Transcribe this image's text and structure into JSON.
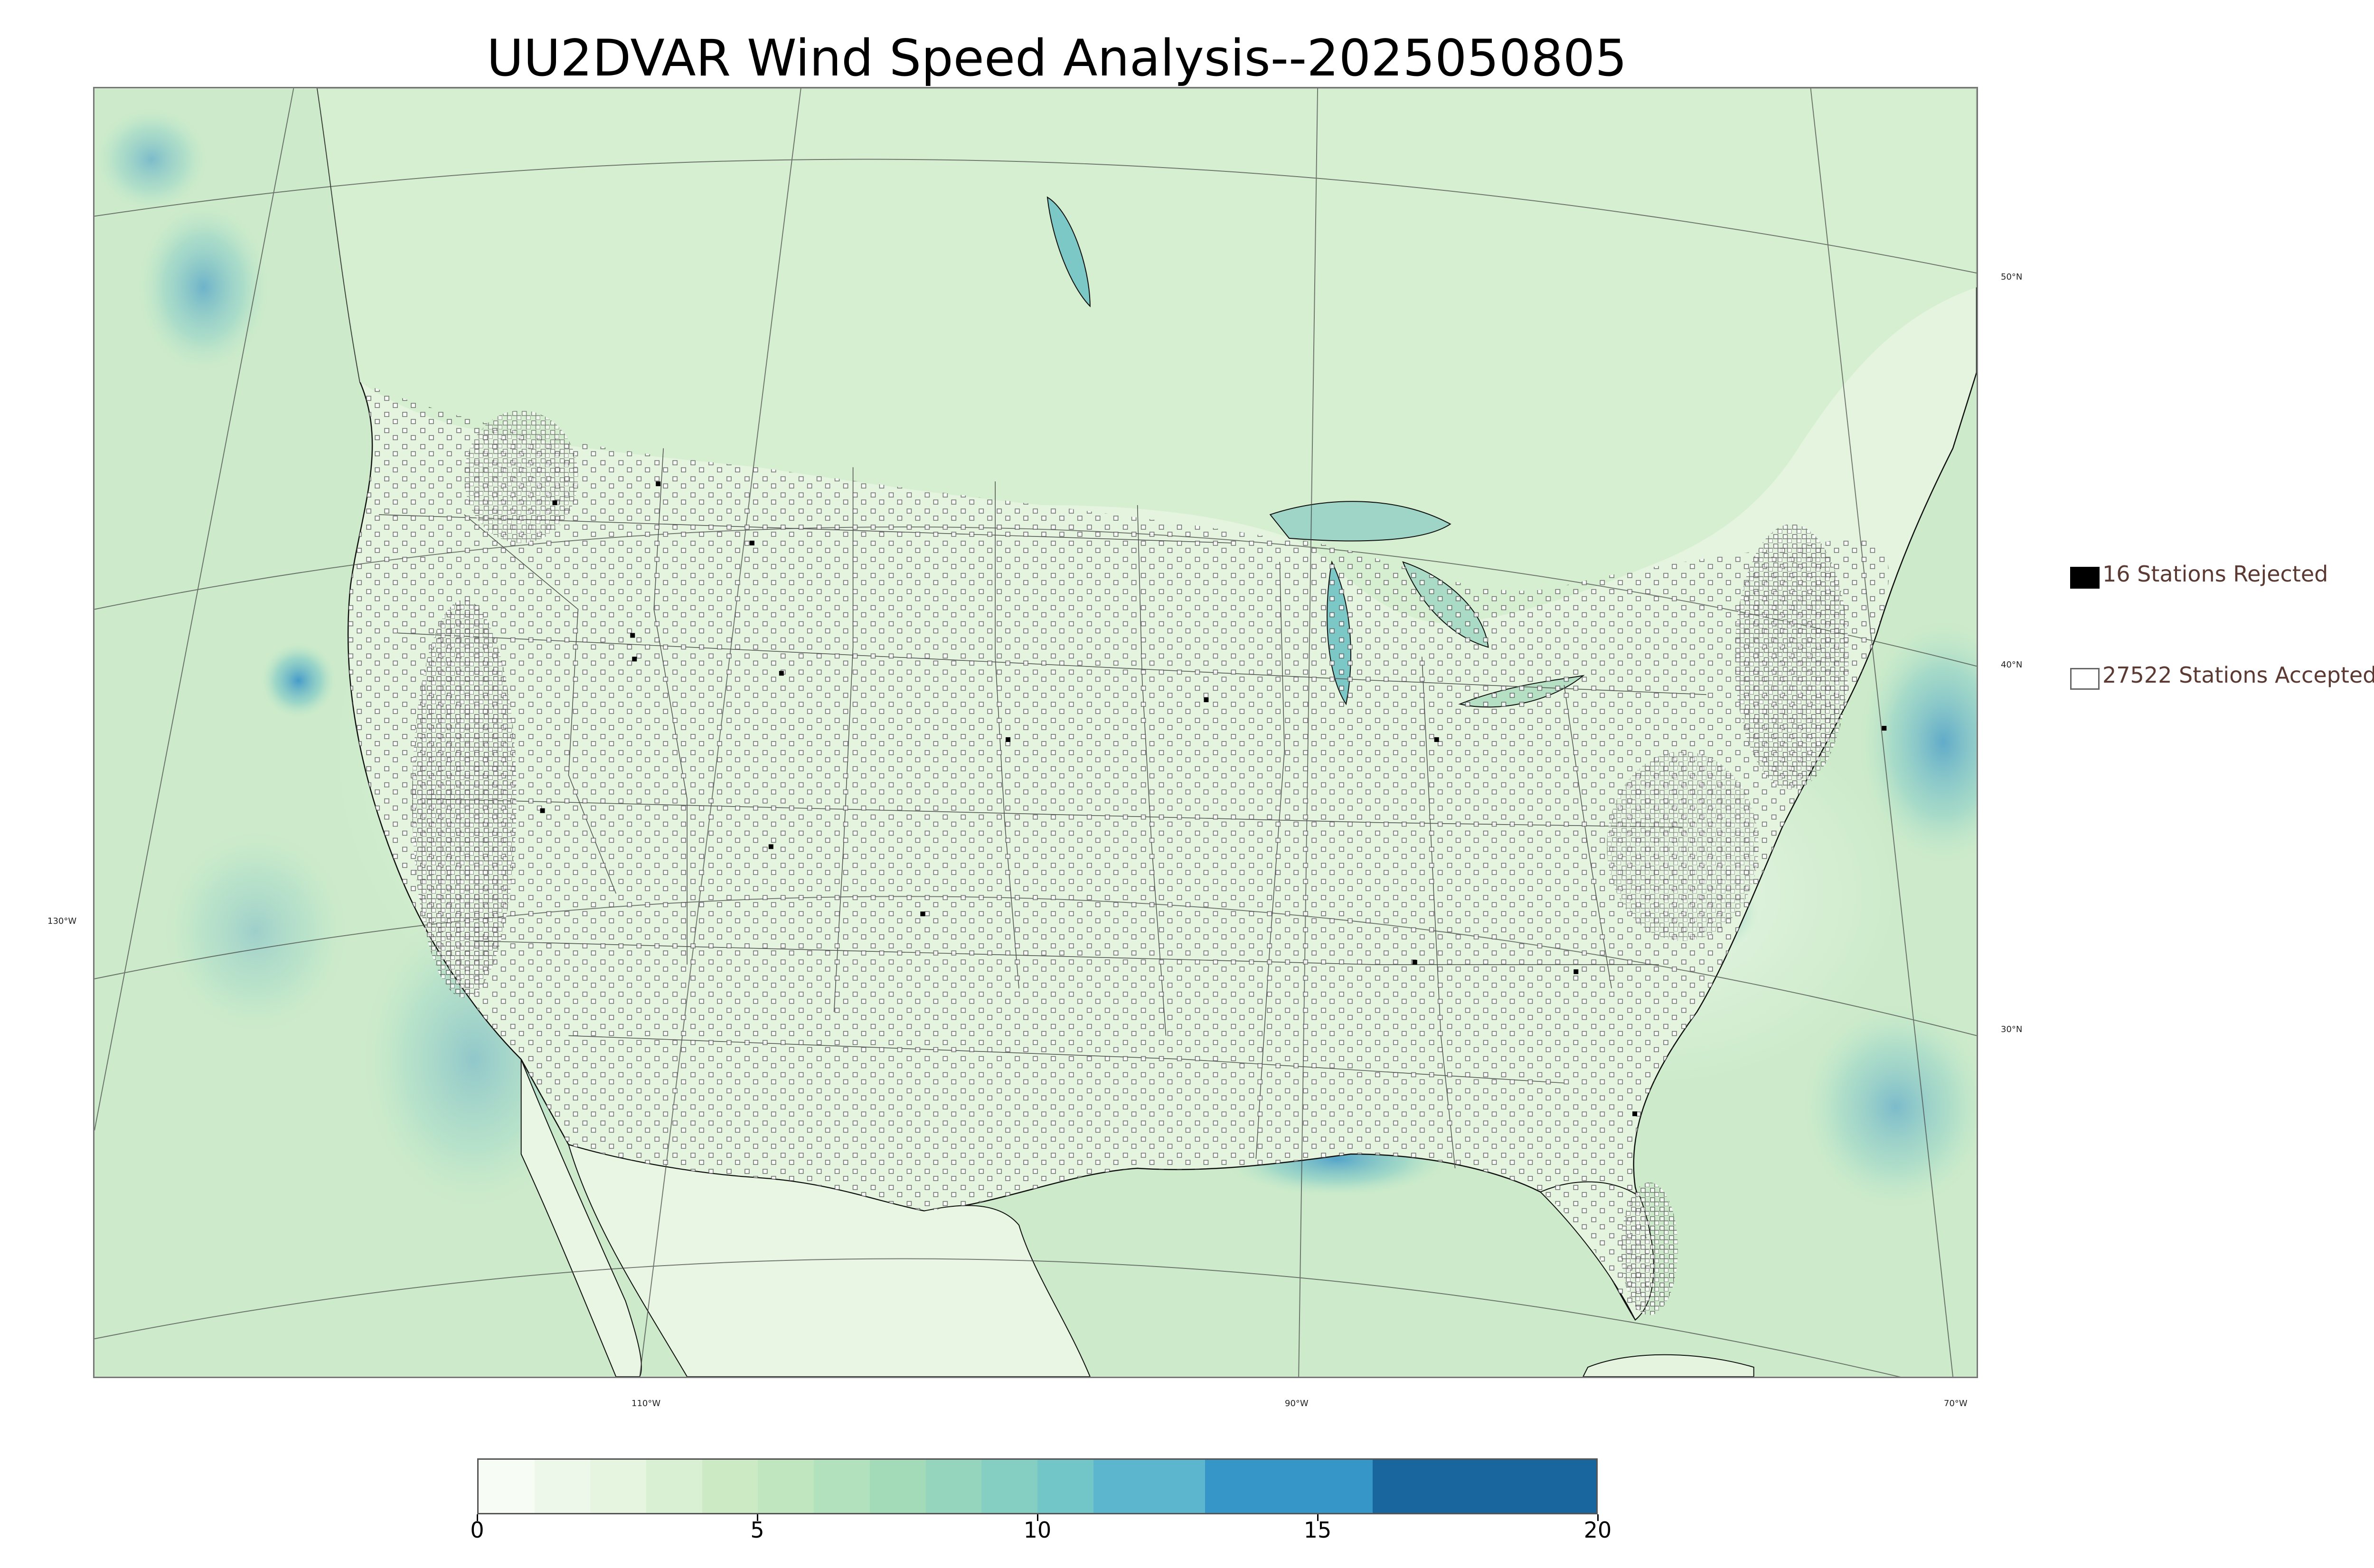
{
  "title": "UU2DVAR Wind Speed Analysis--2025050805",
  "graticule": {
    "lat_labels": [
      "50°N",
      "40°N",
      "30°N"
    ],
    "lon_labels": [
      "130°W",
      "110°W",
      "90°W",
      "70°W"
    ]
  },
  "legend": {
    "rejected": {
      "count": 16,
      "label": "16 Stations Rejected",
      "color": "#000000"
    },
    "accepted": {
      "count": 27522,
      "label": "27522 Stations Accepted",
      "color": "#ffffff"
    }
  },
  "colorbar": {
    "ticks": [
      "0",
      "5",
      "10",
      "15",
      "20"
    ],
    "min": 0,
    "max": 20,
    "bins": [
      {
        "from": 0,
        "to": 1,
        "color": "#f7fcf5"
      },
      {
        "from": 1,
        "to": 2,
        "color": "#eef8ea"
      },
      {
        "from": 2,
        "to": 3,
        "color": "#e5f5e0"
      },
      {
        "from": 3,
        "to": 4,
        "color": "#d9f0d3"
      },
      {
        "from": 4,
        "to": 5,
        "color": "#ccebc5"
      },
      {
        "from": 5,
        "to": 6,
        "color": "#bfe6bf"
      },
      {
        "from": 6,
        "to": 7,
        "color": "#b1e1bd"
      },
      {
        "from": 7,
        "to": 8,
        "color": "#a3dbb9"
      },
      {
        "from": 8,
        "to": 9,
        "color": "#95d5bd"
      },
      {
        "from": 9,
        "to": 10,
        "color": "#84cfc2"
      },
      {
        "from": 10,
        "to": 11,
        "color": "#72c6c8"
      },
      {
        "from": 11,
        "to": 13,
        "color": "#5bb6ce"
      },
      {
        "from": 13,
        "to": 16,
        "color": "#3696c8"
      },
      {
        "from": 16,
        "to": 20,
        "color": "#18669d"
      }
    ]
  },
  "colors": {
    "land": "#d9f0d3",
    "ocean": "#c6e8c8",
    "coastline": "#111111",
    "borders": "#555555"
  }
}
